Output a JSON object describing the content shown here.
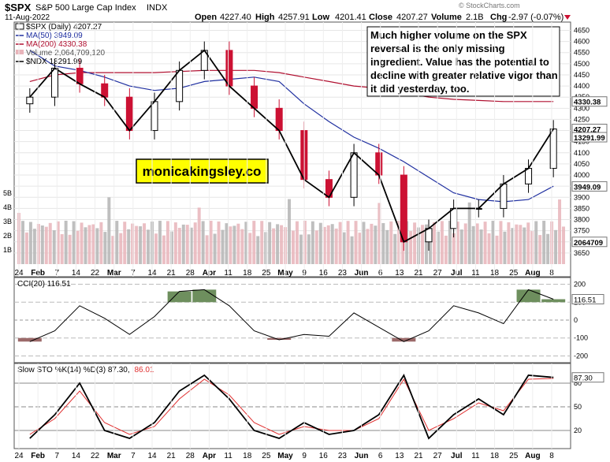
{
  "header": {
    "symbol": "$SPX",
    "name": "S&P 500 Large Cap Index",
    "exchange": "INDX",
    "date": "11-Aug-2022",
    "open_label": "Open",
    "open": "4227.40",
    "high_label": "High",
    "high": "4257.91",
    "low_label": "Low",
    "low": "4201.41",
    "close_label": "Close",
    "close": "4207.27",
    "volume_label": "Volume",
    "volume": "2.1B",
    "chg_label": "Chg",
    "chg": "-2.97 (-0.07%)",
    "chg_icon": "down-triangle-icon",
    "watermark": "© StockCharts.com"
  },
  "legend": {
    "price": "$SPX (Daily) 4207.27",
    "ma50": "MA(50) 3949.09",
    "ma200": "MA(200) 4330.38",
    "volume": "Volume 2,064,709,120",
    "ndx": "$NDX 13291.99"
  },
  "annotation": "Much higher volume on the SPX reversal is the only missing ingredient. Value has the potential to decline with greater relative vigor than it did yesterday, too.",
  "brand": "monicakingsley.co",
  "colors": {
    "up": "#000000",
    "down": "#cc1133",
    "ma50": "#1f2fa0",
    "ma200": "#b01030",
    "vol": "#e8b4ba",
    "vol_gray": "#b4b4b4",
    "cci_pos": "#6e8f5e",
    "cci_neg": "#9c6a6a",
    "sto_d": "#e03030"
  },
  "chart_data": [
    {
      "type": "candlestick",
      "series_name": "$SPX (Daily)",
      "x": [
        "Jan 24",
        "Feb 7",
        "Feb 14",
        "Feb 22",
        "Mar 7",
        "Mar 14",
        "Mar 21",
        "Mar 28",
        "Apr 11",
        "Apr 18",
        "Apr 25",
        "May 9",
        "May 16",
        "May 23",
        "Jun 6",
        "Jun 13",
        "Jun 21",
        "Jul 5",
        "Jul 11",
        "Jul 18",
        "Jul 25",
        "Aug 8"
      ],
      "xticks": [
        "24",
        "Feb",
        "7",
        "14",
        "22",
        "Mar",
        "7",
        "14",
        "21",
        "28",
        "Apr",
        "11",
        "18",
        "25",
        "May",
        "9",
        "16",
        "23",
        "Jun",
        "6",
        "13",
        "21",
        "27",
        "Jul",
        "11",
        "18",
        "25",
        "Aug",
        "8"
      ],
      "close": [
        4350,
        4480,
        4410,
        4350,
        4200,
        4330,
        4470,
        4560,
        4400,
        4300,
        4200,
        3980,
        3900,
        4100,
        4000,
        3700,
        3760,
        3850,
        3850,
        3960,
        4030,
        4207
      ],
      "ma50": [
        4560,
        4490,
        4470,
        4440,
        4400,
        4380,
        4390,
        4420,
        4430,
        4440,
        4420,
        4320,
        4240,
        4170,
        4120,
        4060,
        3990,
        3920,
        3890,
        3880,
        3890,
        3950
      ],
      "ma200": [
        4420,
        4450,
        4460,
        4460,
        4460,
        4460,
        4465,
        4470,
        4470,
        4470,
        4460,
        4440,
        4420,
        4400,
        4390,
        4370,
        4350,
        4340,
        4335,
        4330,
        4330,
        4330
      ],
      "ndx_label": "13291.99",
      "ylim": [
        3600,
        4680
      ],
      "yticks": [
        3650,
        3700,
        3750,
        3800,
        3850,
        3900,
        3950,
        4000,
        4050,
        4100,
        4150,
        4200,
        4250,
        4300,
        4350,
        4400,
        4450,
        4500,
        4550,
        4600,
        4650
      ],
      "ytick_labels": [
        "3650",
        "3700",
        "3750",
        "3800",
        "3850",
        "3900",
        "3950",
        "4000",
        "4050",
        "4100",
        "4150",
        "4200",
        "4250",
        "4300",
        "4350",
        "4400",
        "4450",
        "4500",
        "4550",
        "4600",
        "4650"
      ],
      "last_price_tag": "4207.27",
      "ma200_tag": "4330.38",
      "ma50_tag": "3949.09",
      "ndx_tag": "13291.99",
      "volume_tag": "2064709",
      "volume_axis": [
        "1B",
        "2B",
        "3B",
        "4B",
        "5B"
      ]
    },
    {
      "type": "line",
      "title": "CCI(20) 116.51",
      "values": [
        -120,
        -60,
        80,
        10,
        -80,
        20,
        160,
        170,
        80,
        -60,
        -110,
        -80,
        -90,
        40,
        -40,
        -120,
        -60,
        80,
        40,
        -20,
        170,
        116.51
      ],
      "ylim": [
        -220,
        220
      ],
      "yticks": [
        200,
        100,
        0,
        -100,
        -200
      ],
      "ytick_labels": [
        "200",
        "100",
        "0",
        "-100",
        "-200"
      ],
      "last_tag": "116.51"
    },
    {
      "type": "line",
      "title": "Slow STO %K(14) %D(3) 87.30, 86.01",
      "title_k": "Slow STO %K(14) %D(3) 87.30,",
      "title_d": "86.01",
      "k_values": [
        10,
        40,
        80,
        20,
        10,
        30,
        70,
        90,
        60,
        20,
        10,
        30,
        15,
        20,
        40,
        90,
        10,
        40,
        60,
        40,
        90,
        87.3
      ],
      "d_values": [
        15,
        35,
        70,
        30,
        15,
        25,
        60,
        85,
        65,
        30,
        15,
        25,
        20,
        20,
        35,
        85,
        20,
        35,
        55,
        45,
        85,
        86.01
      ],
      "ylim": [
        0,
        100
      ],
      "yticks": [
        80,
        50,
        20
      ],
      "ytick_labels": [
        "80",
        "50",
        "20"
      ],
      "last_tag": "87.30"
    }
  ],
  "xaxis": {
    "labels": [
      "24",
      "Feb",
      "7",
      "14",
      "22",
      "Mar",
      "7",
      "14",
      "21",
      "28",
      "Apr",
      "11",
      "18",
      "25",
      "May",
      "9",
      "16",
      "23",
      "Jun",
      "6",
      "13",
      "21",
      "27",
      "Jul",
      "11",
      "18",
      "25",
      "Aug",
      "8"
    ]
  }
}
